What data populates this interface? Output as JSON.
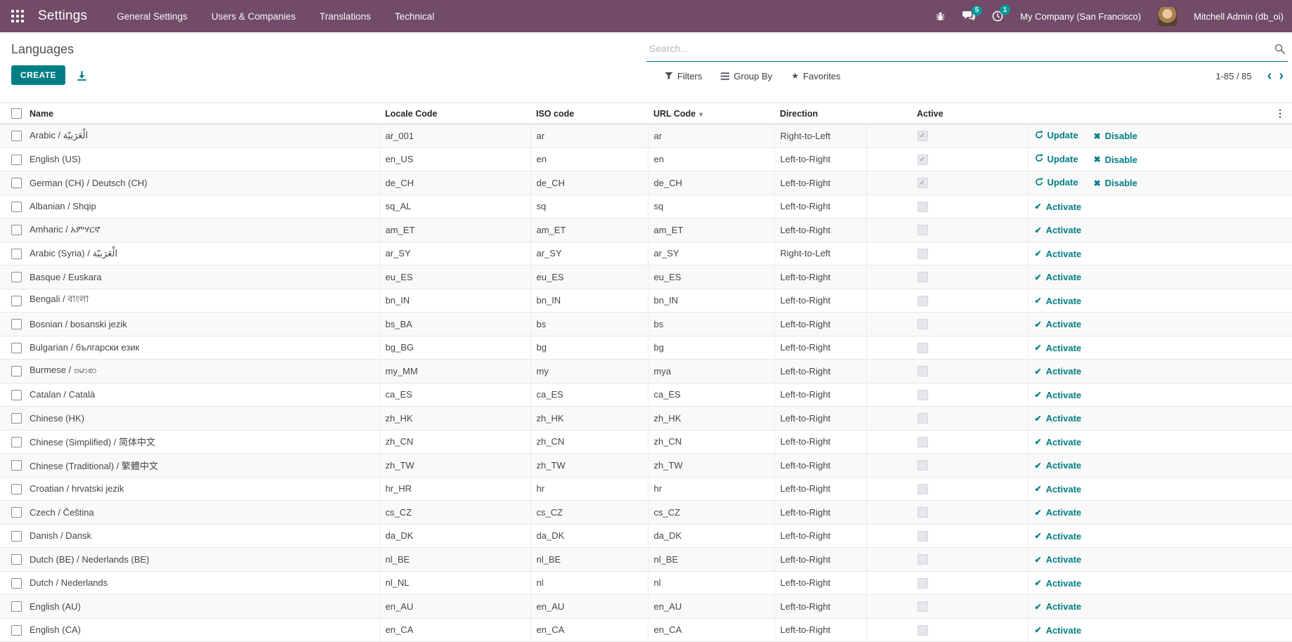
{
  "colors": {
    "topbar": "#714B67",
    "accent": "#017E84",
    "badge": "#00A09D"
  },
  "topbar": {
    "app_name": "Settings",
    "menus": [
      "General Settings",
      "Users & Companies",
      "Translations",
      "Technical"
    ],
    "messages_count": "5",
    "activities_count": "1",
    "company": "My Company (San Francisco)",
    "user": "Mitchell Admin (db_oi)"
  },
  "control_panel": {
    "breadcrumb": "Languages",
    "create_label": "CREATE",
    "search_placeholder": "Search...",
    "filters_label": "Filters",
    "group_by_label": "Group By",
    "favorites_label": "Favorites",
    "pager_value": "1-85 / 85"
  },
  "icons": {
    "check_heavy": "✔",
    "cross_heavy": "✖",
    "check_light": "✓",
    "star": "★",
    "sort_caret": "▾",
    "dots": "⋮",
    "prev": "‹",
    "next": "›"
  },
  "table": {
    "headers": [
      "Name",
      "Locale Code",
      "ISO code",
      "URL Code",
      "Direction",
      "Active"
    ],
    "sorted_column": "URL Code",
    "actions": {
      "update": "Update",
      "disable": "Disable",
      "activate": "Activate"
    },
    "rows": [
      {
        "name": "Arabic / الْعَرَبيّة",
        "locale": "ar_001",
        "iso": "ar",
        "url": "ar",
        "direction": "Right-to-Left",
        "active": true,
        "installed": true
      },
      {
        "name": "English (US)",
        "locale": "en_US",
        "iso": "en",
        "url": "en",
        "direction": "Left-to-Right",
        "active": true,
        "installed": true
      },
      {
        "name": "German (CH) / Deutsch (CH)",
        "locale": "de_CH",
        "iso": "de_CH",
        "url": "de_CH",
        "direction": "Left-to-Right",
        "active": true,
        "installed": true
      },
      {
        "name": "Albanian / Shqip",
        "locale": "sq_AL",
        "iso": "sq",
        "url": "sq",
        "direction": "Left-to-Right",
        "active": false,
        "installed": false
      },
      {
        "name": "Amharic / አምሃርኛ",
        "locale": "am_ET",
        "iso": "am_ET",
        "url": "am_ET",
        "direction": "Left-to-Right",
        "active": false,
        "installed": false
      },
      {
        "name": "Arabic (Syria) / الْعَرَبيّة",
        "locale": "ar_SY",
        "iso": "ar_SY",
        "url": "ar_SY",
        "direction": "Right-to-Left",
        "active": false,
        "installed": false
      },
      {
        "name": "Basque / Euskara",
        "locale": "eu_ES",
        "iso": "eu_ES",
        "url": "eu_ES",
        "direction": "Left-to-Right",
        "active": false,
        "installed": false
      },
      {
        "name": "Bengali / বাংলা",
        "locale": "bn_IN",
        "iso": "bn_IN",
        "url": "bn_IN",
        "direction": "Left-to-Right",
        "active": false,
        "installed": false
      },
      {
        "name": "Bosnian / bosanski jezik",
        "locale": "bs_BA",
        "iso": "bs",
        "url": "bs",
        "direction": "Left-to-Right",
        "active": false,
        "installed": false
      },
      {
        "name": "Bulgarian / български език",
        "locale": "bg_BG",
        "iso": "bg",
        "url": "bg",
        "direction": "Left-to-Right",
        "active": false,
        "installed": false
      },
      {
        "name": "Burmese / ဗမာစာ",
        "locale": "my_MM",
        "iso": "my",
        "url": "mya",
        "direction": "Left-to-Right",
        "active": false,
        "installed": false
      },
      {
        "name": "Catalan / Català",
        "locale": "ca_ES",
        "iso": "ca_ES",
        "url": "ca_ES",
        "direction": "Left-to-Right",
        "active": false,
        "installed": false
      },
      {
        "name": "Chinese (HK)",
        "locale": "zh_HK",
        "iso": "zh_HK",
        "url": "zh_HK",
        "direction": "Left-to-Right",
        "active": false,
        "installed": false
      },
      {
        "name": "Chinese (Simplified) / 简体中文",
        "locale": "zh_CN",
        "iso": "zh_CN",
        "url": "zh_CN",
        "direction": "Left-to-Right",
        "active": false,
        "installed": false
      },
      {
        "name": "Chinese (Traditional) / 繁體中文",
        "locale": "zh_TW",
        "iso": "zh_TW",
        "url": "zh_TW",
        "direction": "Left-to-Right",
        "active": false,
        "installed": false
      },
      {
        "name": "Croatian / hrvatski jezik",
        "locale": "hr_HR",
        "iso": "hr",
        "url": "hr",
        "direction": "Left-to-Right",
        "active": false,
        "installed": false
      },
      {
        "name": "Czech / Čeština",
        "locale": "cs_CZ",
        "iso": "cs_CZ",
        "url": "cs_CZ",
        "direction": "Left-to-Right",
        "active": false,
        "installed": false
      },
      {
        "name": "Danish / Dansk",
        "locale": "da_DK",
        "iso": "da_DK",
        "url": "da_DK",
        "direction": "Left-to-Right",
        "active": false,
        "installed": false
      },
      {
        "name": "Dutch (BE) / Nederlands (BE)",
        "locale": "nl_BE",
        "iso": "nl_BE",
        "url": "nl_BE",
        "direction": "Left-to-Right",
        "active": false,
        "installed": false
      },
      {
        "name": "Dutch / Nederlands",
        "locale": "nl_NL",
        "iso": "nl",
        "url": "nl",
        "direction": "Left-to-Right",
        "active": false,
        "installed": false
      },
      {
        "name": "English (AU)",
        "locale": "en_AU",
        "iso": "en_AU",
        "url": "en_AU",
        "direction": "Left-to-Right",
        "active": false,
        "installed": false
      },
      {
        "name": "English (CA)",
        "locale": "en_CA",
        "iso": "en_CA",
        "url": "en_CA",
        "direction": "Left-to-Right",
        "active": false,
        "installed": false
      }
    ]
  }
}
